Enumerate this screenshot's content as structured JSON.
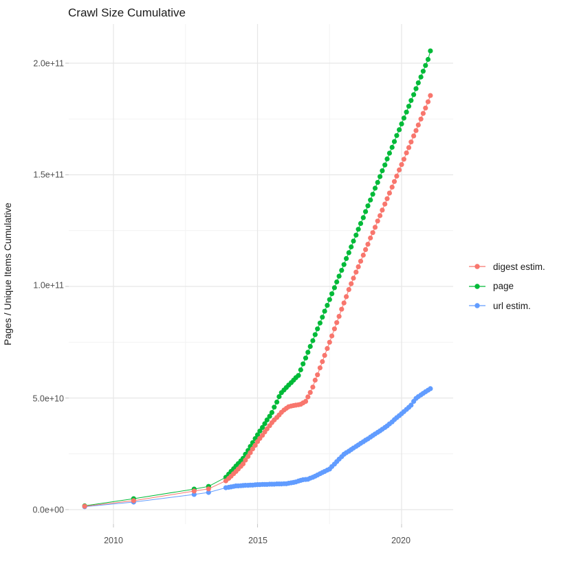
{
  "chart_data": {
    "type": "scatter",
    "title": "Crawl Size Cumulative",
    "xlabel": "",
    "ylabel": "Pages / Unique Items Cumulative",
    "legend_position": "right",
    "grid": true,
    "values_scale": "values are in units of 1e9 (billions); axis shows scientific notation",
    "x_domain": [
      2008.45,
      2021.8
    ],
    "y_domain_e9": [
      -6.5,
      217.5
    ],
    "x_ticks": [
      {
        "label": "2010",
        "year": 2010
      },
      {
        "label": "2015",
        "year": 2015
      },
      {
        "label": "2020",
        "year": 2020
      }
    ],
    "x_minor_years": [
      2012.5,
      2017.5
    ],
    "y_ticks": [
      {
        "label": "0.0e+00",
        "value_e9": 0
      },
      {
        "label": "5.0e+10",
        "value_e9": 50
      },
      {
        "label": "1.0e+11",
        "value_e9": 100
      },
      {
        "label": "1.5e+11",
        "value_e9": 150
      },
      {
        "label": "2.0e+11",
        "value_e9": 200
      }
    ],
    "y_minor_e9": [
      25,
      75,
      125,
      175
    ],
    "series": [
      {
        "name": "digest estim.",
        "color": "#F8766D",
        "points": [
          [
            2009.0,
            1.5
          ],
          [
            2010.7,
            4.0
          ],
          [
            2012.8,
            8.3
          ],
          [
            2013.3,
            9.3
          ],
          [
            2013.9,
            12.9
          ],
          [
            2014.0,
            14.0
          ],
          [
            2014.08,
            15.0
          ],
          [
            2014.17,
            16.1
          ],
          [
            2014.25,
            17.1
          ],
          [
            2014.33,
            18.2
          ],
          [
            2014.42,
            19.4
          ],
          [
            2014.5,
            20.5
          ],
          [
            2014.58,
            22.2
          ],
          [
            2014.67,
            23.8
          ],
          [
            2014.75,
            25.5
          ],
          [
            2014.83,
            27.2
          ],
          [
            2014.92,
            28.8
          ],
          [
            2015.0,
            30.5
          ],
          [
            2015.08,
            31.9
          ],
          [
            2015.17,
            33.3
          ],
          [
            2015.25,
            34.8
          ],
          [
            2015.33,
            36.2
          ],
          [
            2015.42,
            37.6
          ],
          [
            2015.5,
            39.0
          ],
          [
            2015.58,
            40.2
          ],
          [
            2015.67,
            41.3
          ],
          [
            2015.75,
            42.4
          ],
          [
            2015.83,
            43.6
          ],
          [
            2015.92,
            44.6
          ],
          [
            2016.0,
            45.4
          ],
          [
            2016.08,
            46.1
          ],
          [
            2016.17,
            46.4
          ],
          [
            2016.25,
            46.6
          ],
          [
            2016.33,
            46.8
          ],
          [
            2016.42,
            47.0
          ],
          [
            2016.5,
            47.2
          ],
          [
            2016.58,
            47.8
          ],
          [
            2016.67,
            48.5
          ],
          [
            2016.75,
            50.5
          ],
          [
            2016.83,
            52.5
          ],
          [
            2016.92,
            54.9
          ],
          [
            2017.0,
            58.0
          ],
          [
            2017.08,
            60.4
          ],
          [
            2017.17,
            63.5
          ],
          [
            2017.25,
            66.3
          ],
          [
            2017.33,
            69.1
          ],
          [
            2017.42,
            72.2
          ],
          [
            2017.5,
            75.0
          ],
          [
            2017.58,
            77.8
          ],
          [
            2017.67,
            81.0
          ],
          [
            2017.75,
            83.8
          ],
          [
            2017.83,
            86.6
          ],
          [
            2017.92,
            89.8
          ],
          [
            2018.0,
            92.6
          ],
          [
            2018.08,
            95.4
          ],
          [
            2018.17,
            98.6
          ],
          [
            2018.25,
            101.2
          ],
          [
            2018.33,
            103.7
          ],
          [
            2018.42,
            106.4
          ],
          [
            2018.5,
            108.8
          ],
          [
            2018.58,
            111.3
          ],
          [
            2018.67,
            114.0
          ],
          [
            2018.75,
            116.5
          ],
          [
            2018.83,
            118.9
          ],
          [
            2018.92,
            121.7
          ],
          [
            2019.0,
            124.1
          ],
          [
            2019.08,
            126.5
          ],
          [
            2019.17,
            129.3
          ],
          [
            2019.25,
            131.7
          ],
          [
            2019.33,
            134.2
          ],
          [
            2019.42,
            136.9
          ],
          [
            2019.5,
            139.3
          ],
          [
            2019.58,
            141.8
          ],
          [
            2019.67,
            144.5
          ],
          [
            2019.75,
            147.0
          ],
          [
            2019.83,
            149.4
          ],
          [
            2019.92,
            152.2
          ],
          [
            2020.0,
            154.6
          ],
          [
            2020.08,
            157.0
          ],
          [
            2020.17,
            159.8
          ],
          [
            2020.25,
            162.2
          ],
          [
            2020.33,
            164.7
          ],
          [
            2020.42,
            167.4
          ],
          [
            2020.5,
            169.8
          ],
          [
            2020.58,
            172.3
          ],
          [
            2020.67,
            175.0
          ],
          [
            2020.75,
            177.5
          ],
          [
            2020.83,
            179.9
          ],
          [
            2020.92,
            182.7
          ],
          [
            2021.0,
            185.5
          ]
        ]
      },
      {
        "name": "page",
        "color": "#00BA38",
        "points": [
          [
            2009.0,
            1.7
          ],
          [
            2010.7,
            4.9
          ],
          [
            2012.8,
            9.2
          ],
          [
            2013.3,
            10.4
          ],
          [
            2013.9,
            14.5
          ],
          [
            2014.0,
            15.9
          ],
          [
            2014.08,
            17.1
          ],
          [
            2014.17,
            18.3
          ],
          [
            2014.25,
            19.5
          ],
          [
            2014.33,
            20.6
          ],
          [
            2014.42,
            21.8
          ],
          [
            2014.5,
            23.0
          ],
          [
            2014.58,
            24.8
          ],
          [
            2014.67,
            26.5
          ],
          [
            2014.75,
            28.3
          ],
          [
            2014.83,
            30.0
          ],
          [
            2014.92,
            31.8
          ],
          [
            2015.0,
            33.5
          ],
          [
            2015.08,
            35.2
          ],
          [
            2015.17,
            36.8
          ],
          [
            2015.25,
            38.5
          ],
          [
            2015.33,
            40.2
          ],
          [
            2015.42,
            41.8
          ],
          [
            2015.5,
            43.5
          ],
          [
            2015.58,
            45.9
          ],
          [
            2015.67,
            48.2
          ],
          [
            2015.75,
            50.6
          ],
          [
            2015.83,
            52.4
          ],
          [
            2015.92,
            53.6
          ],
          [
            2016.0,
            54.7
          ],
          [
            2016.08,
            55.8
          ],
          [
            2016.17,
            56.9
          ],
          [
            2016.25,
            58.0
          ],
          [
            2016.33,
            59.1
          ],
          [
            2016.42,
            60.1
          ],
          [
            2016.5,
            62.6
          ],
          [
            2016.58,
            65.3
          ],
          [
            2016.67,
            67.9
          ],
          [
            2016.75,
            70.5
          ],
          [
            2016.83,
            73.1
          ],
          [
            2016.92,
            75.7
          ],
          [
            2017.0,
            78.4
          ],
          [
            2017.08,
            81.0
          ],
          [
            2017.17,
            83.6
          ],
          [
            2017.25,
            86.2
          ],
          [
            2017.33,
            88.9
          ],
          [
            2017.42,
            91.5
          ],
          [
            2017.5,
            94.1
          ],
          [
            2017.58,
            96.7
          ],
          [
            2017.67,
            99.4
          ],
          [
            2017.75,
            102.0
          ],
          [
            2017.83,
            104.6
          ],
          [
            2017.92,
            107.2
          ],
          [
            2018.0,
            109.8
          ],
          [
            2018.08,
            112.5
          ],
          [
            2018.17,
            115.1
          ],
          [
            2018.25,
            117.7
          ],
          [
            2018.33,
            120.3
          ],
          [
            2018.42,
            123.0
          ],
          [
            2018.5,
            125.6
          ],
          [
            2018.58,
            128.2
          ],
          [
            2018.67,
            130.8
          ],
          [
            2018.75,
            133.5
          ],
          [
            2018.83,
            136.1
          ],
          [
            2018.92,
            138.7
          ],
          [
            2019.0,
            141.3
          ],
          [
            2019.08,
            144.0
          ],
          [
            2019.17,
            146.6
          ],
          [
            2019.25,
            149.2
          ],
          [
            2019.33,
            151.8
          ],
          [
            2019.42,
            154.4
          ],
          [
            2019.5,
            157.1
          ],
          [
            2019.58,
            159.7
          ],
          [
            2019.67,
            162.3
          ],
          [
            2019.75,
            164.9
          ],
          [
            2019.83,
            167.6
          ],
          [
            2019.92,
            170.2
          ],
          [
            2020.0,
            172.8
          ],
          [
            2020.08,
            175.4
          ],
          [
            2020.17,
            178.1
          ],
          [
            2020.25,
            180.7
          ],
          [
            2020.33,
            183.3
          ],
          [
            2020.42,
            185.9
          ],
          [
            2020.5,
            188.6
          ],
          [
            2020.58,
            191.2
          ],
          [
            2020.67,
            193.8
          ],
          [
            2020.75,
            196.4
          ],
          [
            2020.83,
            199.0
          ],
          [
            2020.92,
            201.7
          ],
          [
            2021.0,
            205.5
          ]
        ]
      },
      {
        "name": "url estim.",
        "color": "#619CFF",
        "points": [
          [
            2009.0,
            1.3
          ],
          [
            2010.7,
            3.4
          ],
          [
            2012.8,
            6.8
          ],
          [
            2013.3,
            7.7
          ],
          [
            2013.9,
            9.8
          ],
          [
            2014.0,
            10.0
          ],
          [
            2014.08,
            10.2
          ],
          [
            2014.17,
            10.4
          ],
          [
            2014.25,
            10.6
          ],
          [
            2014.33,
            10.6
          ],
          [
            2014.42,
            10.7
          ],
          [
            2014.5,
            10.8
          ],
          [
            2014.58,
            10.9
          ],
          [
            2014.67,
            10.9
          ],
          [
            2014.75,
            11.0
          ],
          [
            2014.83,
            11.0
          ],
          [
            2014.92,
            11.1
          ],
          [
            2015.0,
            11.2
          ],
          [
            2015.08,
            11.2
          ],
          [
            2015.17,
            11.3
          ],
          [
            2015.25,
            11.3
          ],
          [
            2015.33,
            11.3
          ],
          [
            2015.42,
            11.4
          ],
          [
            2015.5,
            11.4
          ],
          [
            2015.58,
            11.4
          ],
          [
            2015.67,
            11.5
          ],
          [
            2015.75,
            11.5
          ],
          [
            2015.83,
            11.5
          ],
          [
            2015.92,
            11.6
          ],
          [
            2016.0,
            11.6
          ],
          [
            2016.08,
            11.8
          ],
          [
            2016.17,
            12.0
          ],
          [
            2016.25,
            12.2
          ],
          [
            2016.33,
            12.4
          ],
          [
            2016.42,
            12.8
          ],
          [
            2016.5,
            13.1
          ],
          [
            2016.58,
            13.4
          ],
          [
            2016.67,
            13.5
          ],
          [
            2016.75,
            13.6
          ],
          [
            2016.83,
            14.1
          ],
          [
            2016.92,
            14.5
          ],
          [
            2017.0,
            15.0
          ],
          [
            2017.08,
            15.5
          ],
          [
            2017.17,
            16.1
          ],
          [
            2017.25,
            16.6
          ],
          [
            2017.33,
            17.1
          ],
          [
            2017.42,
            17.7
          ],
          [
            2017.5,
            18.2
          ],
          [
            2017.58,
            19.3
          ],
          [
            2017.67,
            20.4
          ],
          [
            2017.75,
            21.5
          ],
          [
            2017.83,
            22.6
          ],
          [
            2017.92,
            23.7
          ],
          [
            2018.0,
            24.8
          ],
          [
            2018.08,
            25.5
          ],
          [
            2018.17,
            26.2
          ],
          [
            2018.25,
            26.9
          ],
          [
            2018.33,
            27.6
          ],
          [
            2018.42,
            28.3
          ],
          [
            2018.5,
            29.0
          ],
          [
            2018.58,
            29.7
          ],
          [
            2018.67,
            30.4
          ],
          [
            2018.75,
            31.1
          ],
          [
            2018.83,
            31.7
          ],
          [
            2018.92,
            32.5
          ],
          [
            2019.0,
            33.2
          ],
          [
            2019.08,
            33.9
          ],
          [
            2019.17,
            34.6
          ],
          [
            2019.25,
            35.3
          ],
          [
            2019.33,
            36.0
          ],
          [
            2019.42,
            36.8
          ],
          [
            2019.5,
            37.5
          ],
          [
            2019.58,
            38.4
          ],
          [
            2019.67,
            39.3
          ],
          [
            2019.75,
            40.3
          ],
          [
            2019.83,
            41.2
          ],
          [
            2019.92,
            42.1
          ],
          [
            2020.0,
            43.0
          ],
          [
            2020.08,
            43.9
          ],
          [
            2020.17,
            44.9
          ],
          [
            2020.25,
            45.8
          ],
          [
            2020.33,
            46.8
          ],
          [
            2020.42,
            48.5
          ],
          [
            2020.5,
            49.8
          ],
          [
            2020.58,
            50.6
          ],
          [
            2020.67,
            51.4
          ],
          [
            2020.75,
            52.1
          ],
          [
            2020.83,
            52.8
          ],
          [
            2020.92,
            53.5
          ],
          [
            2021.0,
            54.2
          ]
        ]
      }
    ]
  }
}
